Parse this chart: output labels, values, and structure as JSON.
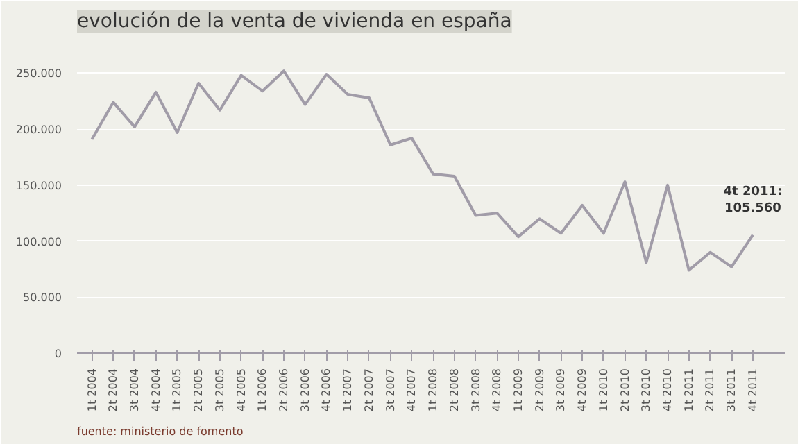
{
  "chart_data": {
    "type": "line",
    "title": "evolución de la venta de vivienda en españa",
    "categories": [
      "1t 2004",
      "2t 2004",
      "3t 2004",
      "4t 2004",
      "1t 2005",
      "2t 2005",
      "3t 2005",
      "4t 2005",
      "1t 2006",
      "2t 2006",
      "3t 2006",
      "4t 2006",
      "1t 2007",
      "2t 2007",
      "3t 2007",
      "4t 2007",
      "1t 2008",
      "2t 2008",
      "3t 2008",
      "4t 2008",
      "1t 2009",
      "2t 2009",
      "3t 2009",
      "4t 2009",
      "1t 2010",
      "2t 2010",
      "3t 2010",
      "4t 2010",
      "1t 2011",
      "2t 2011",
      "3t 2011",
      "4t 2011"
    ],
    "series": [
      {
        "color": "#a19ca8",
        "values": [
          191000,
          224000,
          202000,
          233000,
          197000,
          241000,
          217000,
          248000,
          234000,
          252000,
          222000,
          249000,
          231000,
          228000,
          186000,
          192000,
          160000,
          158000,
          123000,
          125000,
          104000,
          120000,
          107000,
          132000,
          107000,
          153000,
          81000,
          150000,
          74000,
          90000,
          77000,
          105560
        ]
      }
    ],
    "ylim": [
      0,
      280000
    ],
    "yticks": [
      0,
      {
        "value": 50000,
        "label": "50.000"
      },
      {
        "value": 100000,
        "label": "100.000"
      },
      {
        "value": 150000,
        "label": "150.000"
      },
      {
        "value": 200000,
        "label": "200.000"
      },
      {
        "value": 250000,
        "label": "250.000"
      }
    ],
    "grid": "y",
    "marker": "none",
    "line_style": "solid",
    "annotations": [
      {
        "text": "4t 2011:\n105.560",
        "x": "4t 2011",
        "y": 105560
      },
      "fuente: ministerio de fomento"
    ]
  }
}
